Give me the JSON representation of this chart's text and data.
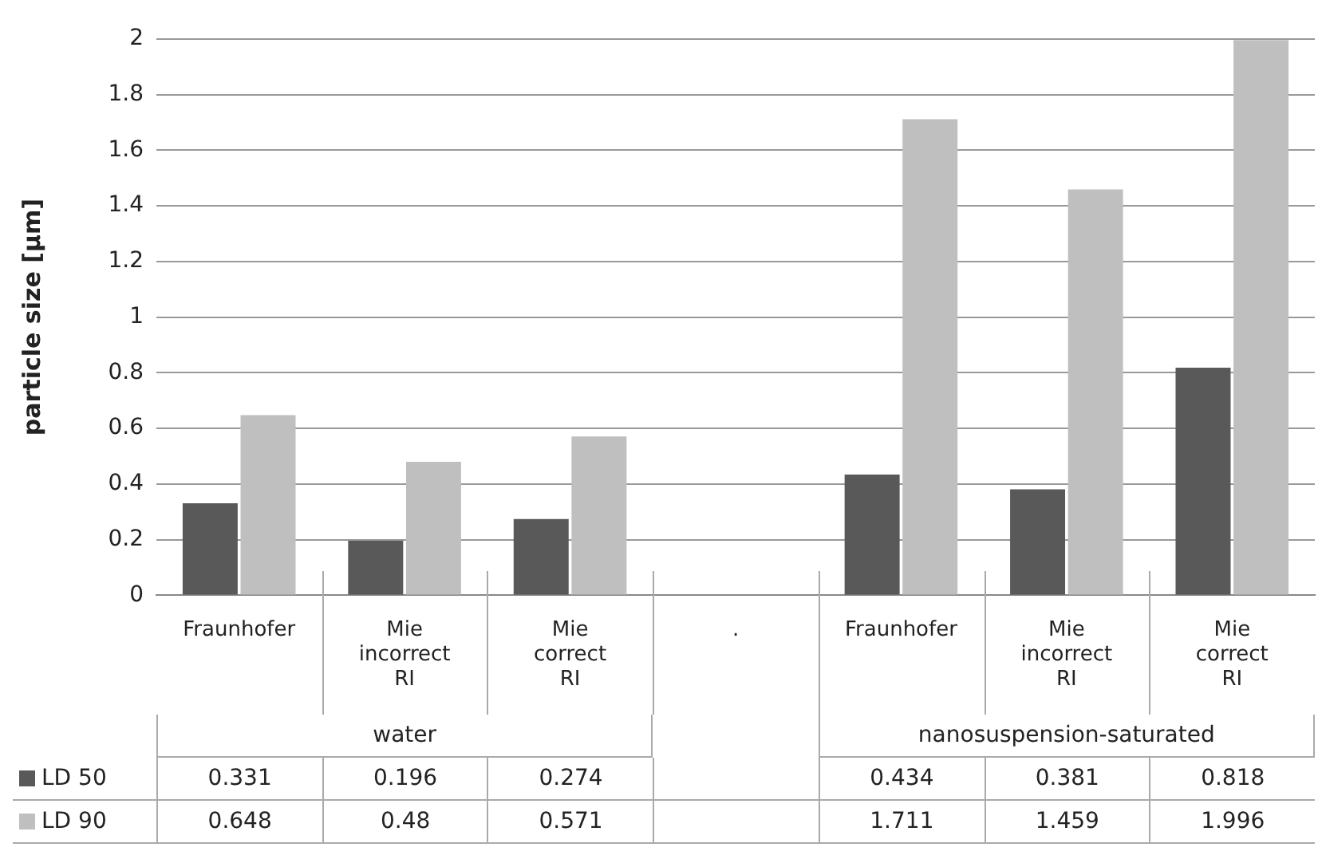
{
  "chart_data": {
    "type": "bar",
    "ylabel": "particle size [µm]",
    "categories": [
      "Fraunhofer",
      "Mie incorrect RI",
      "Mie correct RI",
      ".",
      "Fraunhofer",
      "Mie incorrect RI",
      "Mie correct RI"
    ],
    "series": [
      {
        "name": "LD 50",
        "color": "#595959",
        "values": [
          0.331,
          0.196,
          0.274,
          null,
          0.434,
          0.381,
          0.818
        ]
      },
      {
        "name": "LD 90",
        "color": "#bfbfbf",
        "values": [
          0.648,
          0.48,
          0.571,
          null,
          1.711,
          1.459,
          1.996
        ]
      }
    ],
    "ylim": [
      0,
      2
    ],
    "yticks": [
      0,
      0.2,
      0.4,
      0.6,
      0.8,
      1,
      1.2,
      1.4,
      1.6,
      1.8,
      2
    ],
    "grid": "y",
    "legend": "bottom",
    "data_labels": true,
    "annotations": [
      "water",
      "nanosuspension-saturated"
    ]
  }
}
